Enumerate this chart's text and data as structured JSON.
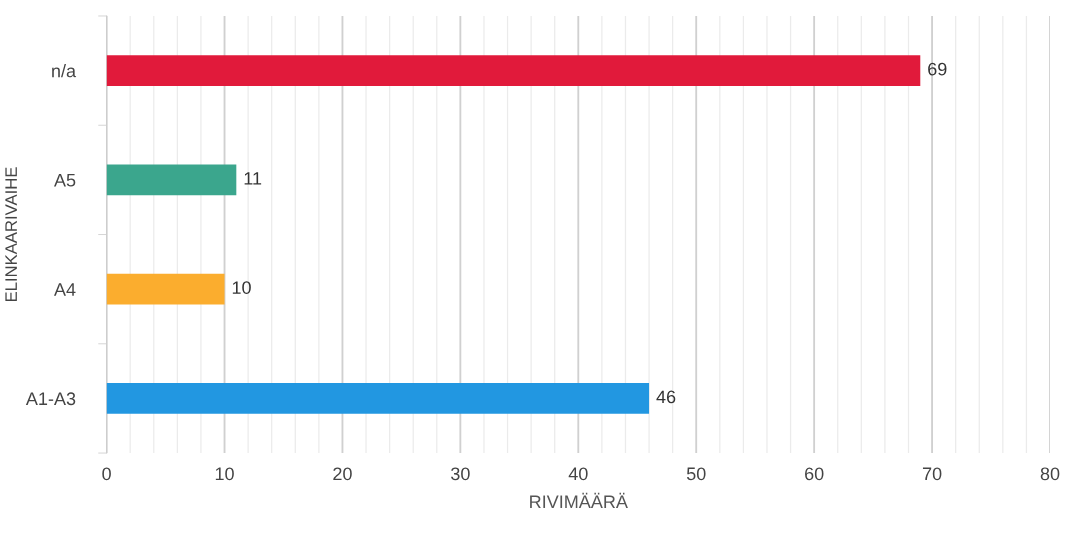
{
  "chart_data": {
    "type": "bar",
    "orientation": "horizontal",
    "xlabel": "RIVIMÄÄRÄ",
    "ylabel": "ELINKAARIVAIHE",
    "categories": [
      "n/a",
      "A5",
      "A4",
      "A1-A3"
    ],
    "values": [
      69,
      11,
      10,
      46
    ],
    "colors": [
      "#e11a3b",
      "#3ba68d",
      "#fbad2e",
      "#2297e1"
    ],
    "xlim": [
      0,
      80
    ],
    "xticks": [
      0,
      10,
      20,
      30,
      40,
      50,
      60,
      70,
      80
    ],
    "grid": "x",
    "data_labels": true,
    "legend": false
  }
}
